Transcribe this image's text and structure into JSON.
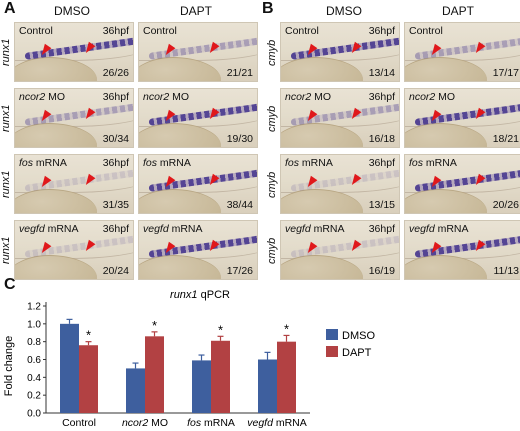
{
  "panel_letters": {
    "a": "A",
    "b": "B",
    "c": "C"
  },
  "panelA": {
    "row_gene": "runx1",
    "col_left": "DMSO",
    "col_right": "DAPT",
    "tiles": [
      {
        "label_pre": "",
        "label_ital": "",
        "label_post": "Control",
        "hpf": "36hpf",
        "count": "26/26",
        "signal": "strong"
      },
      {
        "label_pre": "",
        "label_ital": "",
        "label_post": "Control",
        "hpf": "",
        "count": "21/21",
        "signal": "weak"
      },
      {
        "label_pre": "",
        "label_ital": "ncor2",
        "label_post": " MO",
        "hpf": "36hpf",
        "count": "30/34",
        "signal": "weak"
      },
      {
        "label_pre": "",
        "label_ital": "ncor2",
        "label_post": " MO",
        "hpf": "",
        "count": "19/30",
        "signal": "strong"
      },
      {
        "label_pre": "",
        "label_ital": "fos",
        "label_post": " mRNA",
        "hpf": "36hpf",
        "count": "31/35",
        "signal": "faint"
      },
      {
        "label_pre": "",
        "label_ital": "fos",
        "label_post": " mRNA",
        "hpf": "",
        "count": "38/44",
        "signal": "strong"
      },
      {
        "label_pre": "",
        "label_ital": "vegfd",
        "label_post": " mRNA",
        "hpf": "36hpf",
        "count": "20/24",
        "signal": "faint"
      },
      {
        "label_pre": "",
        "label_ital": "vegfd",
        "label_post": " mRNA",
        "hpf": "",
        "count": "17/26",
        "signal": "strong"
      }
    ]
  },
  "panelB": {
    "row_gene": "cmyb",
    "col_left": "DMSO",
    "col_right": "DAPT",
    "tiles": [
      {
        "label_pre": "",
        "label_ital": "",
        "label_post": "Control",
        "hpf": "36hpf",
        "count": "13/14",
        "signal": "strong"
      },
      {
        "label_pre": "",
        "label_ital": "",
        "label_post": "Control",
        "hpf": "",
        "count": "17/17",
        "signal": "weak"
      },
      {
        "label_pre": "",
        "label_ital": "ncor2",
        "label_post": " MO",
        "hpf": "36hpf",
        "count": "16/18",
        "signal": "weak"
      },
      {
        "label_pre": "",
        "label_ital": "ncor2",
        "label_post": " MO",
        "hpf": "",
        "count": "18/21",
        "signal": "strong"
      },
      {
        "label_pre": "",
        "label_ital": "fos",
        "label_post": " mRNA",
        "hpf": "36hpf",
        "count": "13/15",
        "signal": "faint"
      },
      {
        "label_pre": "",
        "label_ital": "fos",
        "label_post": " mRNA",
        "hpf": "",
        "count": "20/26",
        "signal": "strong"
      },
      {
        "label_pre": "",
        "label_ital": "vegfd",
        "label_post": " mRNA",
        "hpf": "36hpf",
        "count": "16/19",
        "signal": "faint"
      },
      {
        "label_pre": "",
        "label_ital": "vegfd",
        "label_post": " mRNA",
        "hpf": "",
        "count": "11/13",
        "signal": "strong"
      }
    ]
  },
  "colors": {
    "stain": "#3b2a8a",
    "arrow": "#e0181b",
    "dmso": "#3e5f9e",
    "dapt": "#b24143"
  },
  "chart_data": {
    "type": "bar",
    "title_ital": "runx1",
    "title_rest": " qPCR",
    "ylabel": "Fold change",
    "ylim": [
      0,
      1.2
    ],
    "yticks": [
      0,
      0.2,
      0.4,
      0.6,
      0.8,
      1.0,
      1.2
    ],
    "ytick_labels": [
      "0.0",
      "0.2",
      "0.4",
      "0.6",
      "0.8",
      "1.0",
      "1.2"
    ],
    "categories": [
      {
        "ital": "",
        "rest": "Control"
      },
      {
        "ital": "ncor2",
        "rest": " MO"
      },
      {
        "ital": "fos",
        "rest": " mRNA"
      },
      {
        "ital": "vegfd",
        "rest": " mRNA"
      }
    ],
    "series": [
      {
        "name": "DMSO",
        "values": [
          1.0,
          0.5,
          0.59,
          0.6
        ],
        "errors": [
          0.05,
          0.06,
          0.06,
          0.08
        ],
        "stars": [
          "",
          "",
          "",
          ""
        ]
      },
      {
        "name": "DAPT",
        "values": [
          0.76,
          0.86,
          0.81,
          0.8
        ],
        "errors": [
          0.04,
          0.05,
          0.05,
          0.07
        ],
        "stars": [
          "*",
          "*",
          "*",
          "*"
        ]
      }
    ],
    "legend_position": "right"
  }
}
